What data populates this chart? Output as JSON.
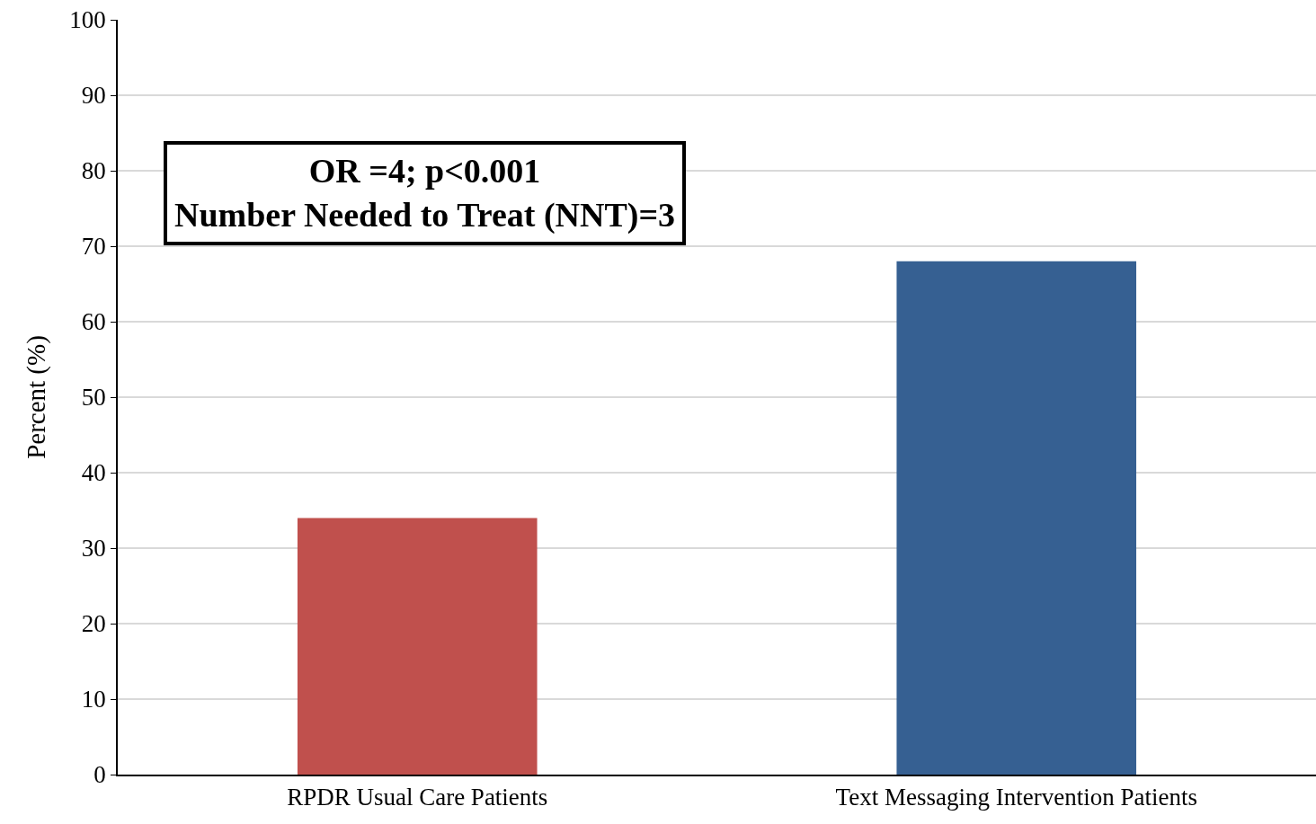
{
  "chart_data": {
    "type": "bar",
    "ylabel": "Percent (%)",
    "categories": [
      "RPDR Usual Care Patients",
      "Text Messaging Intervention Patients"
    ],
    "values": [
      34,
      68
    ],
    "colors": [
      "#c0504d",
      "#366092"
    ],
    "ylim": [
      0,
      100
    ],
    "yticks": [
      0,
      10,
      20,
      30,
      40,
      50,
      60,
      70,
      80,
      90,
      100
    ],
    "grid": "y",
    "annotations": [
      "OR =4; p<0.001\nNumber Needed to Treat (NNT)=3"
    ]
  }
}
